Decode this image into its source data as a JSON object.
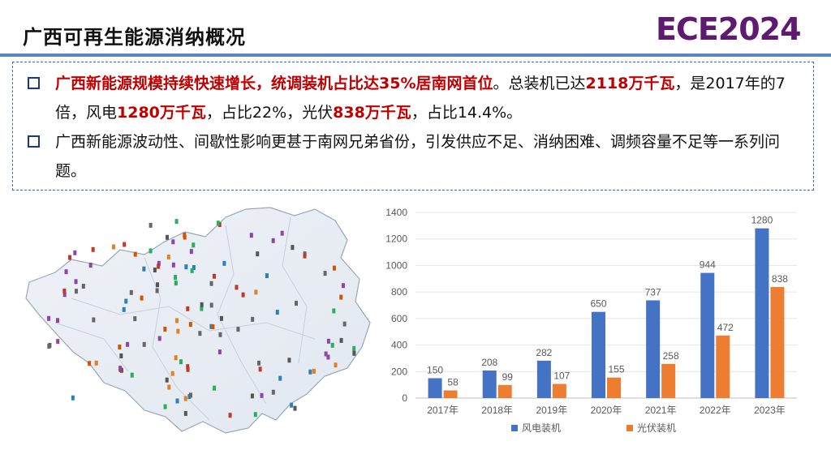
{
  "slide": {
    "title": "广西可再生能源消纳概况",
    "logo_text": "ECE2024"
  },
  "bullets": [
    {
      "segments": [
        {
          "text": "广西新能源规模持续快速增长，统调装机占比达35%居南网首位",
          "highlight": true
        },
        {
          "text": "。总装机已达",
          "highlight": false
        },
        {
          "text": "2118万千瓦",
          "highlight": true
        },
        {
          "text": "，是2017年的7倍，风电",
          "highlight": false
        },
        {
          "text": "1280万千瓦",
          "highlight": true
        },
        {
          "text": "，占比22%，光伏",
          "highlight": false
        },
        {
          "text": "838万千瓦",
          "highlight": true
        },
        {
          "text": "，占比14.4%。",
          "highlight": false
        }
      ]
    },
    {
      "segments": [
        {
          "text": "广西新能源波动性、间歇性影响更甚于南网兄弟省份，引发供应不足、消纳困难、调频容量不足等一系列问题。",
          "highlight": false
        }
      ]
    }
  ],
  "colors": {
    "highlight": "#c00000",
    "header_rule": "#5a86c5",
    "box_border": "#3b6cb7",
    "logo": "#5e1a6e"
  },
  "chart_data": {
    "type": "bar",
    "categories": [
      "2017年",
      "2018年",
      "2019年",
      "2020年",
      "2021年",
      "2022年",
      "2023年"
    ],
    "series": [
      {
        "name": "风电装机",
        "values": [
          150,
          208,
          282,
          650,
          737,
          944,
          1280
        ],
        "color": "#4472c4"
      },
      {
        "name": "光伏装机",
        "values": [
          58,
          99,
          107,
          155,
          258,
          472,
          838
        ],
        "color": "#ed7d31"
      }
    ],
    "yticks": [
      0,
      200,
      400,
      600,
      800,
      1000,
      1200,
      1400
    ],
    "ylim": [
      0,
      1400
    ],
    "grid": true,
    "legend": "bottom"
  }
}
